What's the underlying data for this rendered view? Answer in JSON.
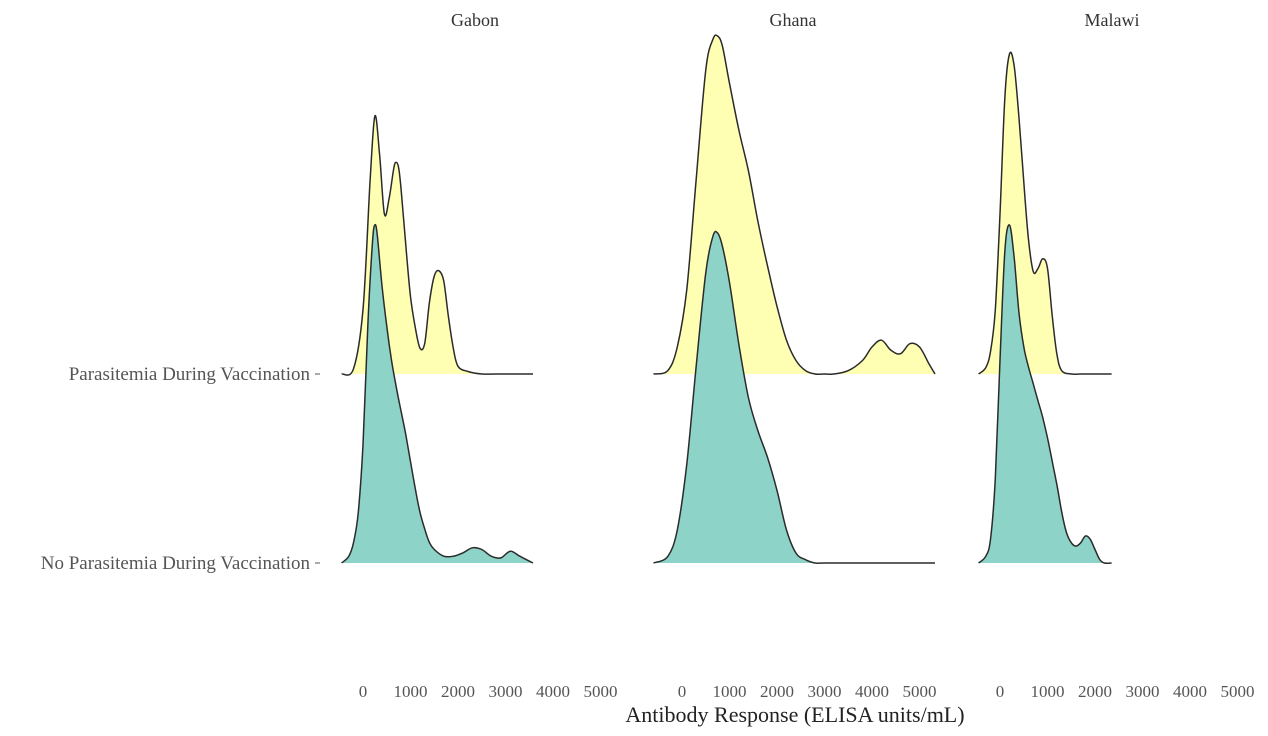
{
  "chart_data": {
    "type": "ridgeline",
    "xlabel": "Antibody Response (ELISA units/mL)",
    "rows": [
      "Parasitemia During Vaccination",
      "No Parasitemia During Vaccination"
    ],
    "x_ticks": [
      0,
      1000,
      2000,
      3000,
      4000,
      5000
    ],
    "xlim": [
      0,
      5000
    ],
    "colors": {
      "Parasitemia During Vaccination": "#ffffb3",
      "No Parasitemia During Vaccination": "#8dd3c7"
    },
    "panels": [
      {
        "title": "Gabon",
        "series": [
          {
            "row": "Parasitemia During Vaccination",
            "x": [
              -450,
              -200,
              0,
              150,
              250,
              350,
              450,
              550,
              650,
              700,
              750,
              800,
              900,
              1000,
              1100,
              1200,
              1300,
              1400,
              1500,
              1600,
              1700,
              1800,
              1900,
              2000,
              2200,
              2500,
              2800,
              3200,
              3600
            ],
            "y": [
              0,
              0.02,
              0.25,
              0.75,
              1.0,
              0.85,
              0.62,
              0.68,
              0.8,
              0.82,
              0.8,
              0.72,
              0.5,
              0.3,
              0.18,
              0.1,
              0.12,
              0.28,
              0.38,
              0.4,
              0.36,
              0.22,
              0.1,
              0.03,
              0.01,
              0,
              0,
              0,
              0
            ]
          },
          {
            "row": "No Parasitemia During Vaccination",
            "x": [
              -450,
              -300,
              -200,
              -100,
              0,
              100,
              200,
              250,
              300,
              400,
              500,
              600,
              700,
              800,
              900,
              1000,
              1100,
              1200,
              1300,
              1400,
              1500,
              1700,
              1900,
              2100,
              2300,
              2500,
              2700,
              2900,
              3100,
              3300,
              3600
            ],
            "y": [
              0,
              0.02,
              0.06,
              0.15,
              0.35,
              0.7,
              0.95,
              1.0,
              0.97,
              0.82,
              0.7,
              0.6,
              0.52,
              0.45,
              0.38,
              0.3,
              0.22,
              0.15,
              0.1,
              0.06,
              0.04,
              0.02,
              0.02,
              0.03,
              0.045,
              0.04,
              0.02,
              0.015,
              0.035,
              0.02,
              0
            ]
          }
        ]
      },
      {
        "title": "Ghana",
        "series": [
          {
            "row": "Parasitemia During Vaccination",
            "x": [
              -600,
              -300,
              -100,
              100,
              300,
              500,
              650,
              750,
              850,
              1000,
              1200,
              1400,
              1600,
              1800,
              2000,
              2200,
              2400,
              2600,
              2800,
              3000,
              3200,
              3500,
              3800,
              4000,
              4200,
              4400,
              4600,
              4800,
              5000,
              5200,
              5400
            ],
            "y": [
              0,
              0.01,
              0.08,
              0.25,
              0.58,
              0.9,
              0.99,
              1.0,
              0.97,
              0.86,
              0.72,
              0.6,
              0.45,
              0.32,
              0.2,
              0.1,
              0.04,
              0.01,
              0,
              0,
              0,
              0.01,
              0.04,
              0.08,
              0.1,
              0.07,
              0.06,
              0.09,
              0.08,
              0.03,
              0
            ]
          },
          {
            "row": "No Parasitemia During Vaccination",
            "x": [
              -600,
              -300,
              -100,
              100,
              300,
              500,
              650,
              750,
              850,
              1000,
              1200,
              1400,
              1600,
              1800,
              2000,
              2200,
              2400,
              2600,
              2800,
              3000,
              3500,
              4000,
              4500,
              5000,
              5400
            ],
            "y": [
              0,
              0.02,
              0.1,
              0.3,
              0.6,
              0.88,
              0.99,
              1.0,
              0.96,
              0.85,
              0.66,
              0.5,
              0.4,
              0.32,
              0.22,
              0.1,
              0.03,
              0.01,
              0,
              0,
              0,
              0,
              0,
              0,
              0
            ]
          }
        ]
      },
      {
        "title": "Malawi",
        "series": [
          {
            "row": "Parasitemia During Vaccination",
            "x": [
              -450,
              -300,
              -200,
              -100,
              0,
              100,
              200,
              300,
              400,
              500,
              600,
              700,
              800,
              900,
              1000,
              1100,
              1200,
              1300,
              1500,
              1700,
              1900,
              2100,
              2350
            ],
            "y": [
              0,
              0.02,
              0.07,
              0.2,
              0.5,
              0.86,
              1.0,
              0.96,
              0.8,
              0.6,
              0.42,
              0.32,
              0.33,
              0.36,
              0.33,
              0.18,
              0.06,
              0.01,
              0,
              0,
              0,
              0,
              0
            ]
          },
          {
            "row": "No Parasitemia During Vaccination",
            "x": [
              -450,
              -300,
              -200,
              -100,
              0,
              100,
              200,
              300,
              400,
              500,
              600,
              700,
              800,
              900,
              1000,
              1100,
              1200,
              1300,
              1400,
              1500,
              1600,
              1700,
              1800,
              1900,
              2000,
              2100,
              2200,
              2350
            ],
            "y": [
              0,
              0.02,
              0.07,
              0.25,
              0.6,
              0.92,
              1.0,
              0.9,
              0.74,
              0.64,
              0.58,
              0.53,
              0.48,
              0.43,
              0.37,
              0.3,
              0.23,
              0.15,
              0.09,
              0.06,
              0.05,
              0.06,
              0.08,
              0.07,
              0.04,
              0.01,
              0,
              0
            ]
          }
        ]
      }
    ]
  }
}
